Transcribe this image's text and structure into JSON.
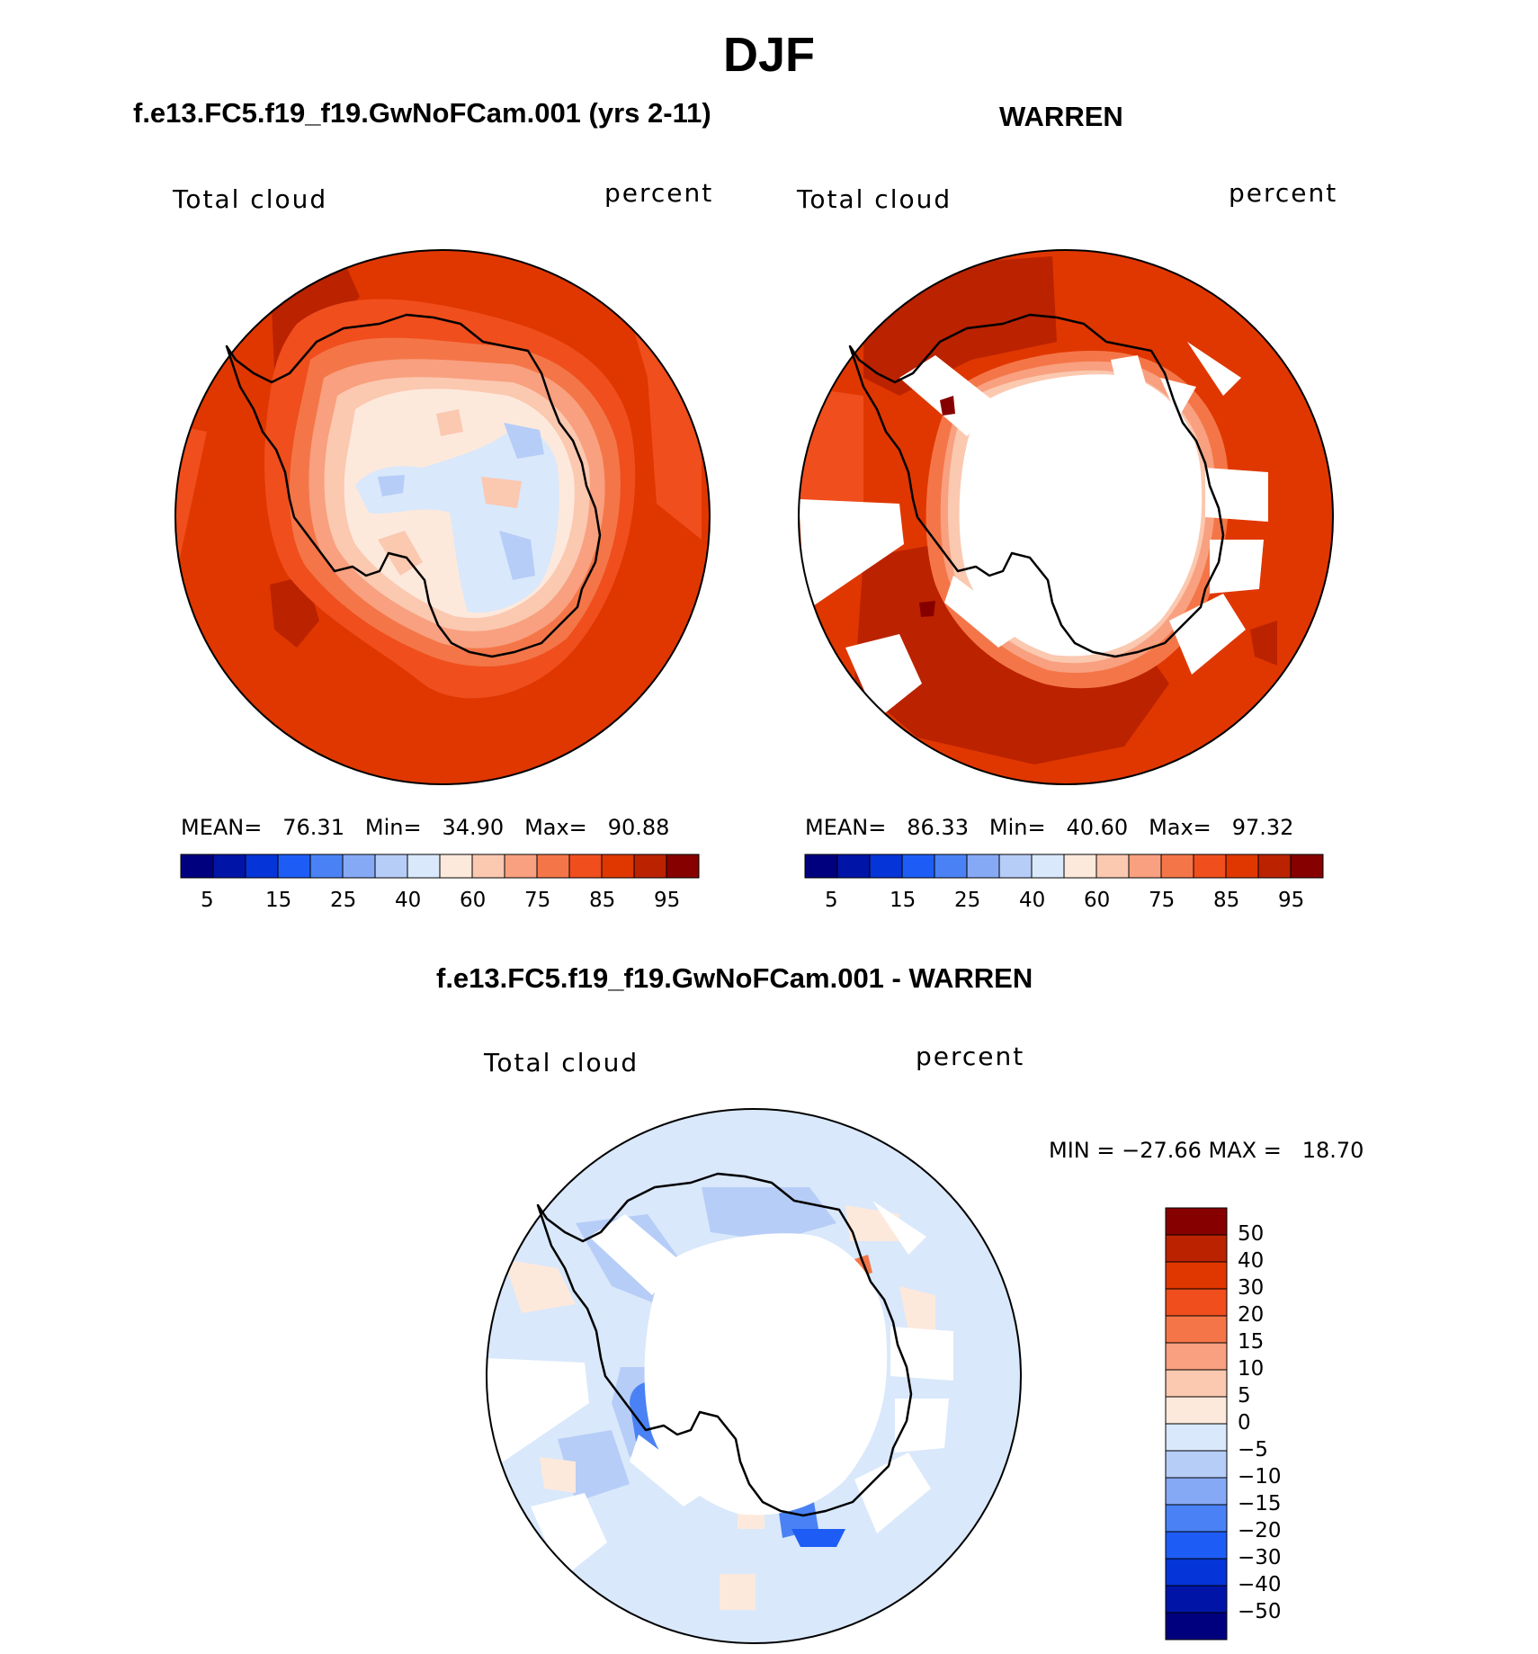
{
  "figure": {
    "title": "DJF"
  },
  "colors": {
    "seq": [
      "#00007f",
      "#0015a8",
      "#0535d8",
      "#1e5df5",
      "#4a82f5",
      "#86a9f5",
      "#b6cdf7",
      "#d9e8fb",
      "#fde9dc",
      "#fbc8b0",
      "#f8a07f",
      "#f47648",
      "#f04e1d",
      "#e03700",
      "#bb2200",
      "#870000"
    ],
    "diff": [
      "#00007f",
      "#0015a8",
      "#0535d8",
      "#1e5df5",
      "#4a82f5",
      "#86a9f5",
      "#b6cdf7",
      "#d9e8fb",
      "#fde9dc",
      "#fbc8b0",
      "#f8a07f",
      "#f47648",
      "#f04e1d",
      "#e03700",
      "#bb2200",
      "#870000"
    ]
  },
  "panels": [
    {
      "title": "f.e13.FC5.f19_f19.GwNoFCam.001 (yrs 2-11)",
      "left_label": "Total cloud",
      "right_label": "percent",
      "stats": {
        "mean_label": "MEAN=",
        "mean": "76.31",
        "min_label": "Min=",
        "min": "34.90",
        "max_label": "Max=",
        "max": "90.88"
      },
      "colorbar_ticks": [
        "5",
        "15",
        "25",
        "40",
        "60",
        "75",
        "85",
        "95"
      ]
    },
    {
      "title": "WARREN",
      "left_label": "Total cloud",
      "right_label": "percent",
      "stats": {
        "mean_label": "MEAN=",
        "mean": "86.33",
        "min_label": "Min=",
        "min": "40.60",
        "max_label": "Max=",
        "max": "97.32"
      },
      "colorbar_ticks": [
        "5",
        "15",
        "25",
        "40",
        "60",
        "75",
        "85",
        "95"
      ]
    }
  ],
  "difference": {
    "title": "f.e13.FC5.f19_f19.GwNoFCam.001 - WARREN",
    "left_label": "Total cloud",
    "right_label": "percent",
    "minmax": "MIN = −27.66 MAX =   18.70",
    "colorbar_ticks": [
      "50",
      "40",
      "30",
      "20",
      "15",
      "10",
      "5",
      "0",
      "−5",
      "−10",
      "−15",
      "−20",
      "−30",
      "−40",
      "−50"
    ]
  }
}
